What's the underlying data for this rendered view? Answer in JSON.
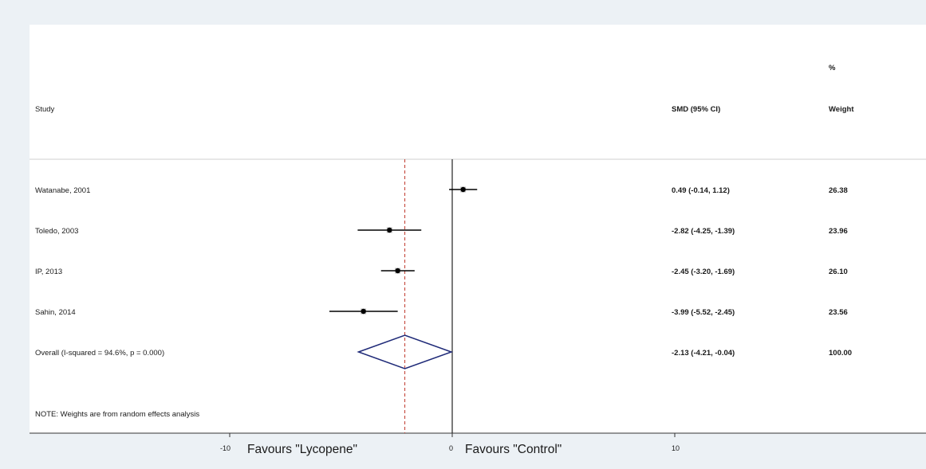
{
  "header": {
    "study": "Study",
    "ci": "SMD (95% CI)",
    "weight_pct": "%",
    "weight": "Weight"
  },
  "rows": [
    {
      "study": "Watanabe, 2001",
      "ci_text": "0.49 (-0.14, 1.12)",
      "weight": "26.38"
    },
    {
      "study": "Toledo, 2003",
      "ci_text": "-2.82 (-4.25, -1.39)",
      "weight": "23.96"
    },
    {
      "study": "IP, 2013",
      "ci_text": "-2.45 (-3.20, -1.69)",
      "weight": "26.10"
    },
    {
      "study": "Sahin, 2014",
      "ci_text": "-3.99 (-5.52, -2.45)",
      "weight": "23.56"
    },
    {
      "study": "Overall  (I-squared = 94.6%, p = 0.000)",
      "ci_text": "-2.13 (-4.21, -0.04)",
      "weight": "100.00"
    }
  ],
  "note": "NOTE: Weights are from random effects analysis",
  "axis": {
    "favours_left": "Favours \"Lycopene\"",
    "favours_right": "Favours \"Control\"",
    "ticks": [
      {
        "value": -10,
        "label": "-10"
      },
      {
        "value": 0,
        "label": "0"
      },
      {
        "value": 10,
        "label": "10"
      }
    ]
  },
  "chart_data": {
    "type": "forest",
    "xlim": [
      -20,
      20
    ],
    "null_line": 0,
    "overall_line": -2.13,
    "colors": {
      "diamond": "#1f2a78",
      "overall_line": "#c0392b",
      "marks": "#000000"
    },
    "studies": [
      {
        "name": "Watanabe, 2001",
        "est": 0.49,
        "lo": -0.14,
        "hi": 1.12
      },
      {
        "name": "Toledo, 2003",
        "est": -2.82,
        "lo": -4.25,
        "hi": -1.39
      },
      {
        "name": "IP, 2013",
        "est": -2.45,
        "lo": -3.2,
        "hi": -1.69
      },
      {
        "name": "Sahin, 2014",
        "est": -3.99,
        "lo": -5.52,
        "hi": -2.45
      }
    ],
    "overall": {
      "est": -2.13,
      "lo": -4.21,
      "hi": -0.04
    }
  }
}
